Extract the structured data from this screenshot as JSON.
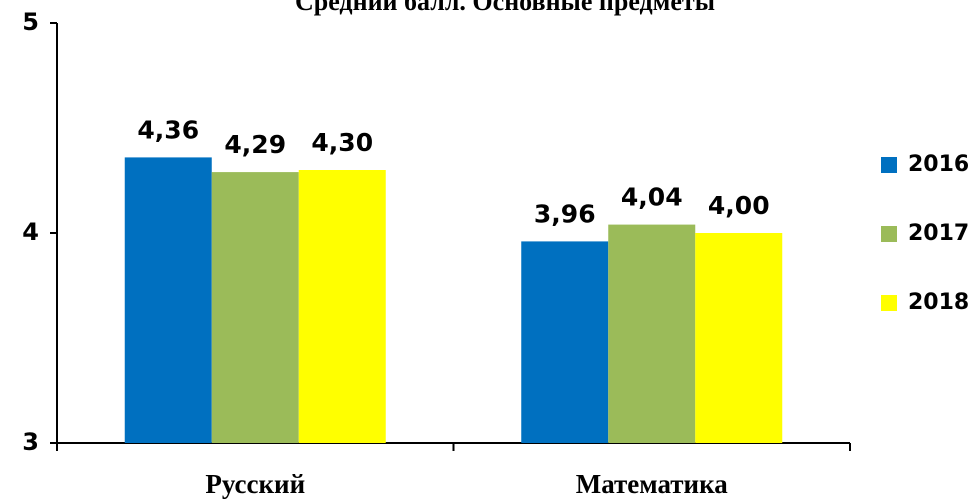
{
  "chart_data": {
    "type": "bar",
    "title": "Средний балл. Основные  предметы",
    "categories": [
      "Русский",
      "Математика"
    ],
    "series": [
      {
        "name": "2016",
        "color": "#0070c0",
        "values": [
          4.36,
          3.96
        ],
        "value_labels": [
          "4,36",
          "3,96"
        ]
      },
      {
        "name": "2017",
        "color": "#9bbb59",
        "values": [
          4.29,
          4.04
        ],
        "value_labels": [
          "4,29",
          "4,04"
        ]
      },
      {
        "name": "2018",
        "color": "#ffff00",
        "values": [
          4.3,
          4.0
        ],
        "value_labels": [
          "4,30",
          "4,00"
        ]
      }
    ],
    "ylim": [
      3,
      5
    ],
    "yticks": [
      3,
      4,
      5
    ],
    "legend": "right"
  }
}
